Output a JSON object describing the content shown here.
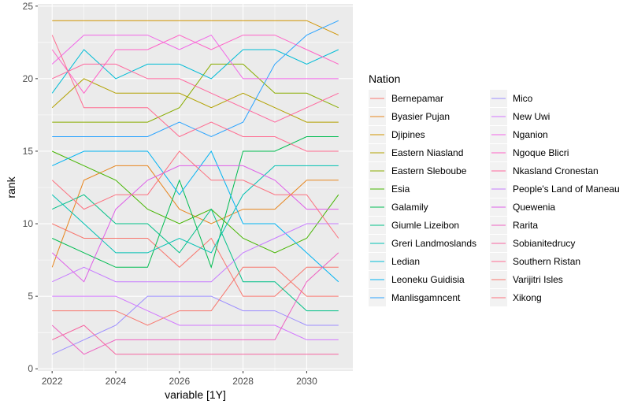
{
  "chart_data": {
    "type": "line",
    "xlabel": "variable [1Y]",
    "ylabel": "rank",
    "legend_title": "Nation",
    "legend_position": "right",
    "grid": true,
    "xlim": [
      2022,
      2031
    ],
    "ylim": [
      0,
      25
    ],
    "x_ticks": [
      2022,
      2024,
      2026,
      2028,
      2030
    ],
    "y_ticks": [
      0,
      5,
      10,
      15,
      20,
      25
    ],
    "x": [
      2022,
      2023,
      2024,
      2025,
      2026,
      2027,
      2028,
      2029,
      2030,
      2031
    ],
    "series": [
      {
        "name": "Bernepamar",
        "color": "#F8766D",
        "values": [
          10,
          9,
          9,
          9,
          7,
          9,
          5,
          5,
          7,
          7
        ]
      },
      {
        "name": "Byasier Pujan",
        "color": "#E7851E",
        "values": [
          7,
          13,
          14,
          14,
          11,
          10,
          11,
          11,
          13,
          13
        ]
      },
      {
        "name": "Djipines",
        "color": "#D09400",
        "values": [
          24,
          24,
          24,
          24,
          24,
          24,
          24,
          24,
          24,
          23
        ]
      },
      {
        "name": "Eastern Niasland",
        "color": "#B2A100",
        "values": [
          18,
          20,
          19,
          19,
          19,
          18,
          19,
          18,
          17,
          17
        ]
      },
      {
        "name": "Eastern Sleboube",
        "color": "#89AC00",
        "values": [
          17,
          17,
          17,
          17,
          18,
          21,
          21,
          19,
          19,
          18
        ]
      },
      {
        "name": "Esia",
        "color": "#45B500",
        "values": [
          15,
          14,
          13,
          11,
          10,
          11,
          9,
          8,
          9,
          12
        ]
      },
      {
        "name": "Galamily",
        "color": "#00BC51",
        "values": [
          9,
          8,
          7,
          7,
          13,
          7,
          15,
          15,
          16,
          16
        ]
      },
      {
        "name": "Giumle Lizeibon",
        "color": "#00C087",
        "values": [
          11,
          12,
          10,
          10,
          8,
          11,
          6,
          6,
          4,
          4
        ]
      },
      {
        "name": "Greri Landmoslands",
        "color": "#00C0B2",
        "values": [
          12,
          10,
          8,
          8,
          9,
          8,
          12,
          14,
          14,
          14
        ]
      },
      {
        "name": "Ledian",
        "color": "#00BCD6",
        "values": [
          19,
          22,
          20,
          21,
          21,
          20,
          22,
          22,
          21,
          22
        ]
      },
      {
        "name": "Leoneku Guidisia",
        "color": "#00B3F2",
        "values": [
          14,
          15,
          15,
          15,
          12,
          15,
          10,
          10,
          8,
          6
        ]
      },
      {
        "name": "Manlisgamncent",
        "color": "#29A3FF",
        "values": [
          16,
          16,
          16,
          16,
          17,
          16,
          17,
          21,
          23,
          24
        ]
      },
      {
        "name": "Mico",
        "color": "#9C8DFF",
        "values": [
          1,
          2,
          3,
          5,
          5,
          5,
          4,
          4,
          3,
          3
        ]
      },
      {
        "name": "New Uwi",
        "color": "#D277FF",
        "values": [
          5,
          5,
          5,
          4,
          3,
          3,
          3,
          3,
          2,
          2
        ]
      },
      {
        "name": "Nganion",
        "color": "#F166E8",
        "values": [
          21,
          23,
          23,
          23,
          22,
          23,
          20,
          20,
          20,
          20
        ]
      },
      {
        "name": "Ngoque Blicri",
        "color": "#FF61C7",
        "values": [
          22,
          19,
          22,
          22,
          23,
          22,
          23,
          23,
          22,
          21
        ]
      },
      {
        "name": "Nkasland Cronestan",
        "color": "#FF689E",
        "values": [
          20,
          21,
          21,
          20,
          20,
          19,
          18,
          17,
          18,
          19
        ]
      },
      {
        "name": "People's Land of Maneau",
        "color": "#C77CFF",
        "values": [
          6,
          7,
          6,
          6,
          6,
          6,
          8,
          9,
          10,
          10
        ]
      },
      {
        "name": "Quewenia",
        "color": "#DE5EE8",
        "values": [
          8,
          6,
          11,
          13,
          14,
          14,
          14,
          13,
          11,
          11
        ]
      },
      {
        "name": "Rarita",
        "color": "#EE62C1",
        "values": [
          3,
          1,
          2,
          2,
          2,
          2,
          2,
          2,
          6,
          8
        ]
      },
      {
        "name": "Sobianitedrucy",
        "color": "#F664A0",
        "values": [
          2,
          3,
          1,
          1,
          1,
          1,
          1,
          1,
          1,
          1
        ]
      },
      {
        "name": "Southern Ristan",
        "color": "#FF6C91",
        "values": [
          23,
          18,
          18,
          18,
          16,
          17,
          16,
          16,
          15,
          15
        ]
      },
      {
        "name": "Varijitri Isles",
        "color": "#F8766D",
        "values": [
          4,
          4,
          4,
          3,
          4,
          4,
          7,
          7,
          5,
          5
        ]
      },
      {
        "name": "Xikong",
        "color": "#FC717F",
        "values": [
          13,
          11,
          12,
          12,
          15,
          13,
          13,
          12,
          12,
          9
        ]
      }
    ]
  }
}
